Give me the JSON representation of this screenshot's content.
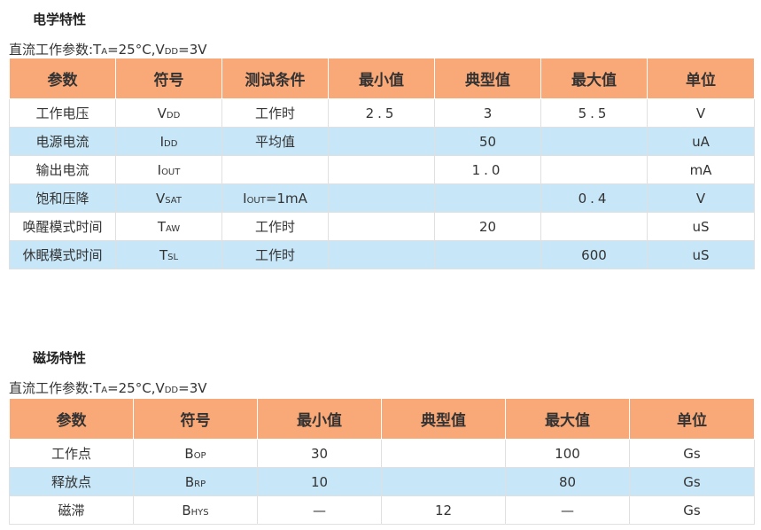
{
  "electrical": {
    "title": "电学特性",
    "condition": {
      "prefix": "直流工作参数:T",
      "ta_sub": "A",
      "mid": "=25°C,V",
      "vdd_sub": "DD",
      "suffix": "=3V"
    },
    "headers": [
      "参数",
      "符号",
      "测试条件",
      "最小值",
      "典型值",
      "最大值",
      "单位"
    ],
    "rows": [
      {
        "param": "工作电压",
        "sym": "V",
        "sym_sub": "DD",
        "cond": "工作时",
        "cond_letter": "",
        "cond_sub": "",
        "cond_rest": "",
        "min": "2.5",
        "typ": "3",
        "max": "5.5",
        "unit": "V"
      },
      {
        "param": "电源电流",
        "sym": "I",
        "sym_sub": "DD",
        "cond": "平均值",
        "cond_letter": "",
        "cond_sub": "",
        "cond_rest": "",
        "min": "",
        "typ": "50",
        "max": "",
        "unit": "uA"
      },
      {
        "param": "输出电流",
        "sym": "I",
        "sym_sub": "OUT",
        "cond": "",
        "cond_letter": "",
        "cond_sub": "",
        "cond_rest": "",
        "min": "",
        "typ": "1.0",
        "max": "",
        "unit": "mA"
      },
      {
        "param": "饱和压降",
        "sym": "V",
        "sym_sub": "SAT",
        "cond": "",
        "cond_letter": "I",
        "cond_sub": "OUT",
        "cond_rest": "=1mA",
        "min": "",
        "typ": "",
        "max": "0.4",
        "unit": "V"
      },
      {
        "param": "唤醒模式时间",
        "sym": "T",
        "sym_sub": "AW",
        "cond": "工作时",
        "cond_letter": "",
        "cond_sub": "",
        "cond_rest": "",
        "min": "",
        "typ": "20",
        "max": "",
        "unit": "uS"
      },
      {
        "param": "休眠模式时间",
        "sym": "T",
        "sym_sub": "SL",
        "cond": "工作时",
        "cond_letter": "",
        "cond_sub": "",
        "cond_rest": "",
        "min": "",
        "typ": "",
        "max": "600",
        "unit": "uS"
      }
    ]
  },
  "magnetic": {
    "title": "磁场特性",
    "condition": {
      "prefix": "直流工作参数:T",
      "ta_sub": "A",
      "mid": "=25°C,V",
      "vdd_sub": "DD",
      "suffix": "=3V"
    },
    "headers": [
      "参数",
      "符号",
      "最小值",
      "典型值",
      "最大值",
      "单位"
    ],
    "rows": [
      {
        "param": "工作点",
        "sym": "B",
        "sym_sub": "OP",
        "min": "30",
        "typ": "",
        "max": "100",
        "unit": "Gs"
      },
      {
        "param": "释放点",
        "sym": "B",
        "sym_sub": "RP",
        "min": "10",
        "typ": "",
        "max": "80",
        "unit": "Gs"
      },
      {
        "param": "磁滞",
        "sym": "B",
        "sym_sub": "HYS",
        "min": "—",
        "typ": "12",
        "max": "—",
        "unit": "Gs"
      }
    ]
  },
  "colors": {
    "header_bg": "#f9a877",
    "alt_row_bg": "#c7e6f7",
    "border": "#e0e0e0"
  }
}
